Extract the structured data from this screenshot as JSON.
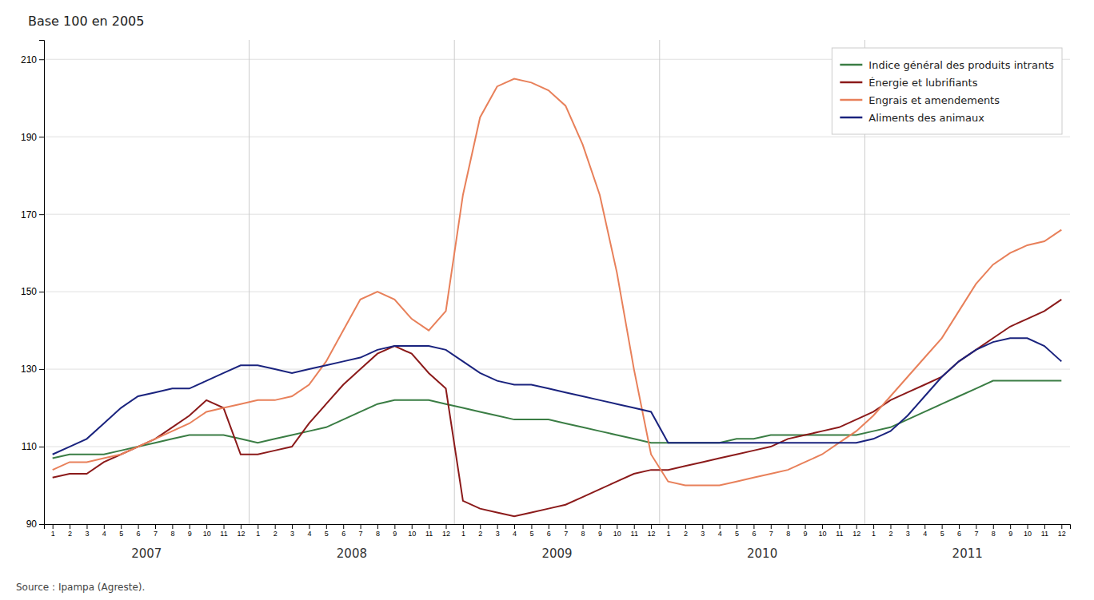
{
  "chart_data": {
    "type": "line",
    "title": "Base 100 en 2005",
    "annotations": [
      "Source : Ipampa (Agreste)."
    ],
    "x_groups": [
      "2007",
      "2008",
      "2009",
      "2010",
      "2011"
    ],
    "categories": [
      "1",
      "2",
      "3",
      "4",
      "5",
      "6",
      "7",
      "8",
      "9",
      "10",
      "11",
      "12",
      "1",
      "2",
      "3",
      "4",
      "5",
      "6",
      "7",
      "8",
      "9",
      "10",
      "11",
      "12",
      "1",
      "2",
      "3",
      "4",
      "5",
      "6",
      "7",
      "8",
      "9",
      "10",
      "11",
      "12",
      "1",
      "2",
      "3",
      "4",
      "5",
      "6",
      "7",
      "8",
      "9",
      "10",
      "11",
      "12",
      "1",
      "2",
      "3",
      "4",
      "5",
      "6",
      "7",
      "8",
      "9",
      "10",
      "11",
      "12"
    ],
    "series": [
      {
        "name": "Indice général des produits intrants",
        "color": "#3a7d44",
        "values": [
          107,
          108,
          108,
          108,
          109,
          110,
          111,
          112,
          113,
          113,
          113,
          112,
          111,
          112,
          113,
          114,
          115,
          117,
          119,
          121,
          122,
          122,
          122,
          121,
          120,
          119,
          118,
          117,
          117,
          117,
          116,
          115,
          114,
          113,
          112,
          111,
          111,
          111,
          111,
          111,
          112,
          112,
          113,
          113,
          113,
          113,
          113,
          113,
          114,
          115,
          117,
          119,
          121,
          123,
          125,
          127,
          127,
          127,
          127,
          127
        ]
      },
      {
        "name": "Énergie et lubrifiants",
        "color": "#8b1a1a",
        "values": [
          102,
          103,
          103,
          106,
          108,
          110,
          112,
          115,
          118,
          122,
          120,
          108,
          108,
          109,
          110,
          116,
          121,
          126,
          130,
          134,
          136,
          134,
          129,
          125,
          96,
          94,
          93,
          92,
          93,
          94,
          95,
          97,
          99,
          101,
          103,
          104,
          104,
          105,
          106,
          107,
          108,
          109,
          110,
          112,
          113,
          114,
          115,
          117,
          119,
          122,
          124,
          126,
          128,
          132,
          135,
          138,
          141,
          143,
          145,
          148
        ]
      },
      {
        "name": "Engrais et amendements",
        "color": "#e8805a",
        "values": [
          104,
          106,
          106,
          107,
          108,
          110,
          112,
          114,
          116,
          119,
          120,
          121,
          122,
          122,
          123,
          126,
          132,
          140,
          148,
          150,
          148,
          143,
          140,
          145,
          175,
          195,
          203,
          205,
          204,
          202,
          198,
          188,
          175,
          155,
          130,
          108,
          101,
          100,
          100,
          100,
          101,
          102,
          103,
          104,
          106,
          108,
          111,
          114,
          118,
          123,
          128,
          133,
          138,
          145,
          152,
          157,
          160,
          162,
          163,
          166
        ]
      },
      {
        "name": "Aliments des animaux",
        "color": "#1a237e",
        "values": [
          108,
          110,
          112,
          116,
          120,
          123,
          124,
          125,
          125,
          127,
          129,
          131,
          131,
          130,
          129,
          130,
          131,
          132,
          133,
          135,
          136,
          136,
          136,
          135,
          132,
          129,
          127,
          126,
          126,
          125,
          124,
          123,
          122,
          121,
          120,
          119,
          111,
          111,
          111,
          111,
          111,
          111,
          111,
          111,
          111,
          111,
          111,
          111,
          112,
          114,
          118,
          123,
          128,
          132,
          135,
          137,
          138,
          138,
          136,
          132
        ]
      }
    ],
    "ylim": [
      90,
      215
    ],
    "yticks": [
      90,
      110,
      130,
      150,
      170,
      190,
      210
    ],
    "grid": true,
    "legend": "upper right"
  }
}
